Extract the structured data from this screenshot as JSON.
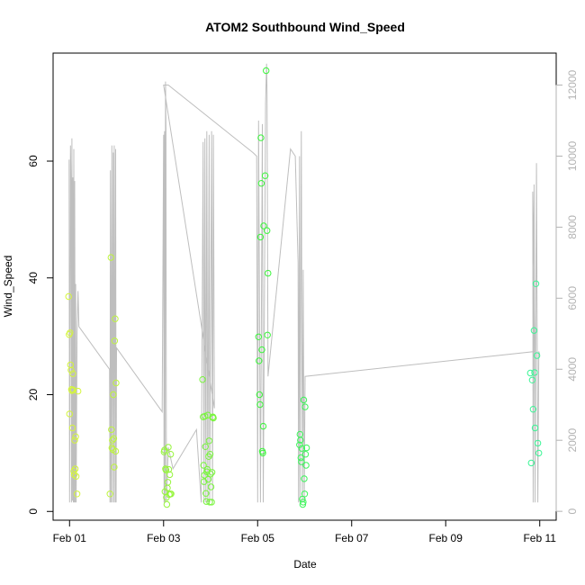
{
  "chart_data": {
    "type": "scatter",
    "title": "ATOM2 Southbound Wind_Speed",
    "xlabel": "Date",
    "ylabel": "Wind_Speed",
    "x_unit": "days since Feb 01",
    "xlim": [
      -0.35,
      10.35
    ],
    "ylim": [
      -1.5,
      78.5
    ],
    "y2lim": [
      -250,
      12900
    ],
    "x_ticks": [
      {
        "value": 0,
        "label": "Feb 01"
      },
      {
        "value": 2,
        "label": "Feb 03"
      },
      {
        "value": 4,
        "label": "Feb 05"
      },
      {
        "value": 6,
        "label": "Feb 07"
      },
      {
        "value": 8,
        "label": "Feb 09"
      },
      {
        "value": 10,
        "label": "Feb 11"
      }
    ],
    "y_ticks": [
      0,
      20,
      40,
      60
    ],
    "y2_ticks": [
      0,
      2000,
      4000,
      6000,
      8000,
      10000,
      12000
    ],
    "colors": {
      "frame": "#000000",
      "secondary_line": "#bebebe",
      "secondary_axis": "#b3b3b3",
      "point_day1": "#d4f53c",
      "point_day2": "#bef53c",
      "point_day3": "#96f53c",
      "point_day4": "#78f53c",
      "point_day5": "#3cf53c",
      "point_day6": "#3cf55a",
      "point_day11": "#3cf596"
    },
    "grid": false,
    "legend": "none",
    "series": [
      {
        "color_key": "point_day1",
        "points": [
          [
            -0.02,
            36.8
          ],
          [
            -0.01,
            30.3
          ],
          [
            0.0,
            16.7
          ],
          [
            0.01,
            30.6
          ],
          [
            0.02,
            25.1
          ],
          [
            0.03,
            24.2
          ],
          [
            0.04,
            20.9
          ],
          [
            0.05,
            20.7
          ],
          [
            0.06,
            14.3
          ],
          [
            0.07,
            23.6
          ],
          [
            0.08,
            20.8
          ],
          [
            0.09,
            6.9
          ],
          [
            0.1,
            6.3
          ],
          [
            0.11,
            12.2
          ],
          [
            0.12,
            7.3
          ],
          [
            0.13,
            12.8
          ],
          [
            0.14,
            6.0
          ],
          [
            0.16,
            3.0
          ],
          [
            0.18,
            20.6
          ]
        ]
      },
      {
        "color_key": "point_day2",
        "points": [
          [
            0.86,
            3.0
          ],
          [
            0.88,
            43.5
          ],
          [
            0.89,
            14.0
          ],
          [
            0.9,
            10.9
          ],
          [
            0.91,
            12.2
          ],
          [
            0.92,
            10.6
          ],
          [
            0.93,
            20.0
          ],
          [
            0.94,
            12.5
          ],
          [
            0.95,
            7.6
          ],
          [
            0.96,
            29.2
          ],
          [
            0.97,
            33.0
          ],
          [
            0.98,
            10.3
          ],
          [
            0.99,
            22.0
          ]
        ]
      },
      {
        "color_key": "point_day3",
        "points": [
          [
            2.01,
            10.2
          ],
          [
            2.02,
            10.5
          ],
          [
            2.03,
            3.4
          ],
          [
            2.04,
            7.3
          ],
          [
            2.05,
            7.1
          ],
          [
            2.06,
            2.4
          ],
          [
            2.07,
            1.2
          ],
          [
            2.08,
            4.0
          ],
          [
            2.09,
            5.0
          ],
          [
            2.1,
            11.0
          ],
          [
            2.11,
            7.2
          ],
          [
            2.12,
            2.9
          ],
          [
            2.13,
            6.3
          ],
          [
            2.14,
            3.0
          ],
          [
            2.15,
            9.8
          ],
          [
            2.16,
            3.0
          ]
        ]
      },
      {
        "color_key": "point_day4",
        "points": [
          [
            2.83,
            22.6
          ],
          [
            2.84,
            16.2
          ],
          [
            2.85,
            7.9
          ],
          [
            2.86,
            5.1
          ],
          [
            2.87,
            6.2
          ],
          [
            2.88,
            16.3
          ],
          [
            2.89,
            11.1
          ],
          [
            2.9,
            3.1
          ],
          [
            2.91,
            1.7
          ],
          [
            2.92,
            6.8
          ],
          [
            2.93,
            7.2
          ],
          [
            2.94,
            16.5
          ],
          [
            2.95,
            5.5
          ],
          [
            2.96,
            9.4
          ],
          [
            2.97,
            12.1
          ],
          [
            2.98,
            1.6
          ],
          [
            2.99,
            9.8
          ],
          [
            3.0,
            6.4
          ],
          [
            3.01,
            4.2
          ],
          [
            3.02,
            1.6
          ],
          [
            3.03,
            6.7
          ],
          [
            3.04,
            16.1
          ],
          [
            3.05,
            16.2
          ],
          [
            3.06,
            16.0
          ]
        ]
      },
      {
        "color_key": "point_day5",
        "points": [
          [
            4.02,
            29.9
          ],
          [
            4.03,
            25.8
          ],
          [
            4.04,
            20.0
          ],
          [
            4.05,
            18.3
          ],
          [
            4.06,
            47.0
          ],
          [
            4.07,
            64.0
          ],
          [
            4.08,
            56.2
          ],
          [
            4.09,
            27.7
          ],
          [
            4.1,
            10.3
          ],
          [
            4.11,
            10.0
          ],
          [
            4.12,
            14.6
          ],
          [
            4.13,
            48.9
          ],
          [
            4.16,
            57.5
          ],
          [
            4.18,
            75.5
          ],
          [
            4.2,
            48.1
          ],
          [
            4.21,
            30.2
          ],
          [
            4.22,
            40.8
          ]
        ]
      },
      {
        "color_key": "point_day6",
        "points": [
          [
            4.89,
            11.4
          ],
          [
            4.9,
            13.2
          ],
          [
            4.91,
            12.2
          ],
          [
            4.92,
            9.2
          ],
          [
            4.93,
            8.5
          ],
          [
            4.94,
            10.8
          ],
          [
            4.95,
            2.1
          ],
          [
            4.96,
            1.2
          ],
          [
            4.97,
            1.6
          ],
          [
            4.98,
            19.1
          ],
          [
            4.99,
            5.6
          ],
          [
            5.0,
            3.0
          ],
          [
            5.01,
            17.9
          ],
          [
            5.02,
            9.8
          ],
          [
            5.03,
            7.9
          ],
          [
            5.04,
            10.9
          ]
        ]
      },
      {
        "color_key": "point_day11",
        "points": [
          [
            9.8,
            23.7
          ],
          [
            9.82,
            8.3
          ],
          [
            9.84,
            22.5
          ],
          [
            9.86,
            17.5
          ],
          [
            9.88,
            31.0
          ],
          [
            9.89,
            23.8
          ],
          [
            9.9,
            14.3
          ],
          [
            9.92,
            39.0
          ],
          [
            9.94,
            26.7
          ],
          [
            9.96,
            11.7
          ],
          [
            9.98,
            10.0
          ]
        ]
      }
    ],
    "secondary_series": {
      "color_key": "secondary_line",
      "axis": "right",
      "points": [
        [
          -0.01,
          9900
        ],
        [
          0.0,
          250
        ],
        [
          0.02,
          10300
        ],
        [
          0.03,
          9200
        ],
        [
          0.04,
          250
        ],
        [
          0.05,
          10500
        ],
        [
          0.06,
          300
        ],
        [
          0.07,
          9400
        ],
        [
          0.08,
          250
        ],
        [
          0.09,
          10200
        ],
        [
          0.1,
          250
        ],
        [
          0.11,
          9300
        ],
        [
          0.12,
          250
        ],
        [
          0.13,
          6400
        ],
        [
          0.14,
          250
        ],
        [
          0.16,
          5000
        ],
        [
          0.18,
          6200
        ],
        [
          0.2,
          5200
        ],
        [
          0.85,
          4000
        ],
        [
          0.86,
          250
        ],
        [
          0.87,
          9600
        ],
        [
          0.88,
          250
        ],
        [
          0.9,
          10300
        ],
        [
          0.91,
          250
        ],
        [
          0.93,
          10100
        ],
        [
          0.94,
          250
        ],
        [
          0.95,
          10300
        ],
        [
          0.97,
          250
        ],
        [
          0.98,
          10200
        ],
        [
          0.99,
          250
        ],
        [
          1.0,
          4600
        ],
        [
          1.97,
          2800
        ],
        [
          2.0,
          10600
        ],
        [
          2.01,
          250
        ],
        [
          2.02,
          10700
        ],
        [
          2.03,
          250
        ],
        [
          2.04,
          12100
        ],
        [
          2.05,
          10800
        ],
        [
          2.06,
          300
        ],
        [
          2.1,
          1800
        ],
        [
          2.2,
          1200
        ],
        [
          2.7,
          2300
        ],
        [
          2.8,
          250
        ],
        [
          2.84,
          10400
        ],
        [
          2.86,
          250
        ],
        [
          2.88,
          10500
        ],
        [
          2.9,
          250
        ],
        [
          2.92,
          10700
        ],
        [
          2.94,
          250
        ],
        [
          2.97,
          10600
        ],
        [
          2.98,
          250
        ],
        [
          3.02,
          10700
        ],
        [
          3.04,
          250
        ],
        [
          3.06,
          10600
        ],
        [
          3.08,
          2900
        ],
        [
          2.0,
          12000
        ],
        [
          2.1,
          12000
        ],
        [
          3.9,
          10100
        ],
        [
          3.98,
          10000
        ],
        [
          4.0,
          250
        ],
        [
          4.02,
          11000
        ],
        [
          4.06,
          250
        ],
        [
          4.1,
          10900
        ],
        [
          4.12,
          250
        ],
        [
          4.17,
          11500
        ],
        [
          4.19,
          12600
        ],
        [
          4.2,
          11800
        ],
        [
          4.22,
          3800
        ],
        [
          4.7,
          10200
        ],
        [
          4.8,
          10000
        ],
        [
          4.86,
          7000
        ],
        [
          4.87,
          250
        ],
        [
          4.89,
          10000
        ],
        [
          4.9,
          250
        ],
        [
          4.93,
          10700
        ],
        [
          4.95,
          250
        ],
        [
          4.97,
          6800
        ],
        [
          4.99,
          250
        ],
        [
          5.01,
          3800
        ],
        [
          9.9,
          4500
        ],
        [
          9.85,
          9000
        ],
        [
          9.86,
          250
        ],
        [
          9.88,
          9200
        ],
        [
          9.9,
          250
        ],
        [
          9.93,
          9800
        ],
        [
          9.96,
          250
        ],
        [
          9.98,
          4500
        ],
        [
          10.0,
          4400
        ]
      ]
    }
  }
}
